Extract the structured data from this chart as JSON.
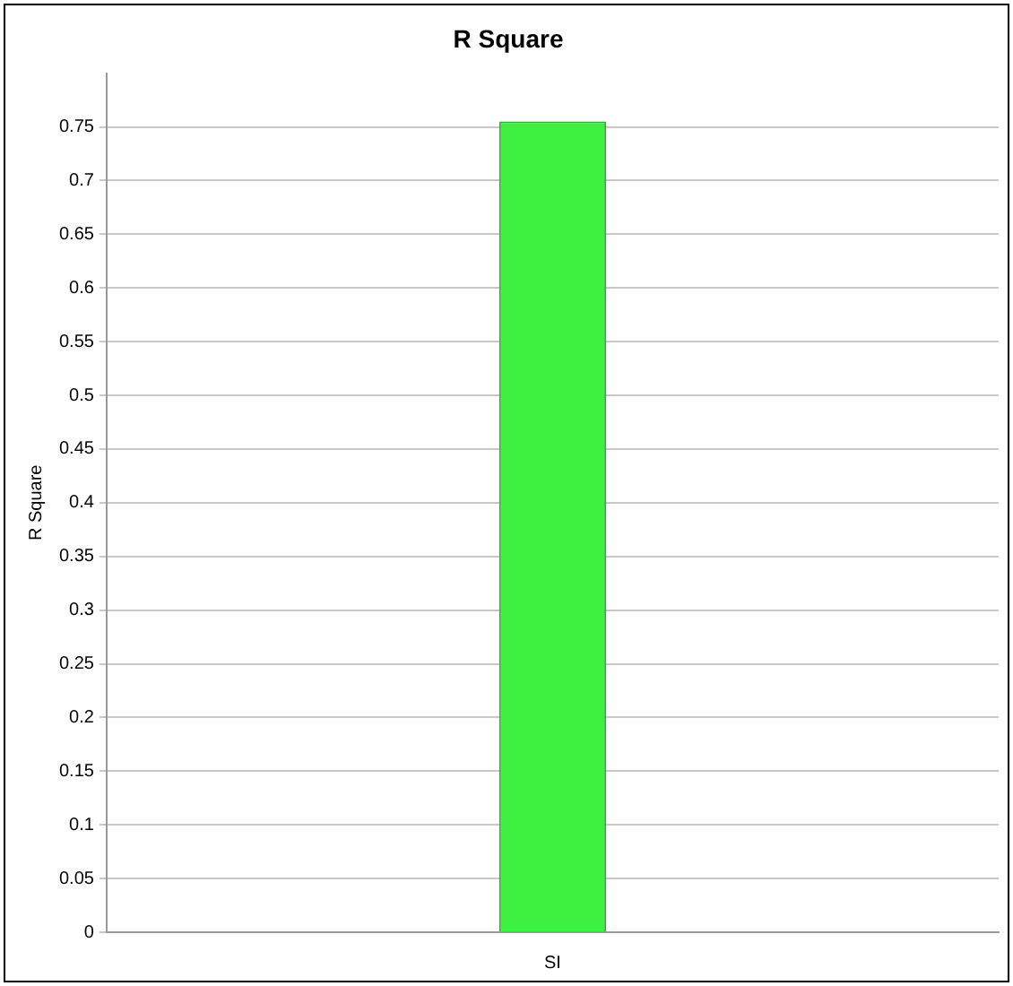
{
  "chart_data": {
    "type": "bar",
    "title": "R Square",
    "ylabel": "R Square",
    "categories": [
      "SI"
    ],
    "values": [
      0.755
    ],
    "color": "#40f040",
    "ylim": [
      0,
      0.8
    ],
    "yticks": [
      0,
      0.05,
      0.1,
      0.15,
      0.2,
      0.25,
      0.3,
      0.35,
      0.4,
      0.45,
      0.5,
      0.55,
      0.6,
      0.65,
      0.7,
      0.75
    ],
    "grid": "y",
    "legend": false
  }
}
